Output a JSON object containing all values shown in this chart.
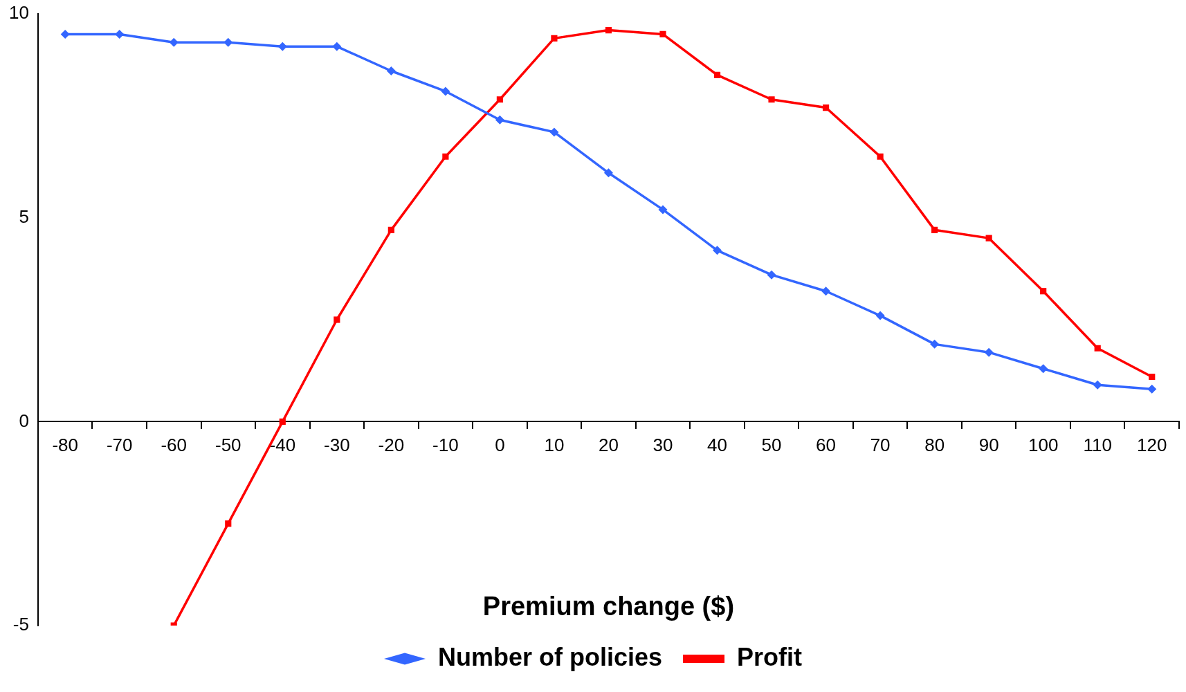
{
  "chart_data": {
    "type": "line",
    "xlabel": "Premium change ($)",
    "categories": [
      "-80",
      "-70",
      "-60",
      "-50",
      "-40",
      "-30",
      "-20",
      "-10",
      "0",
      "10",
      "20",
      "30",
      "40",
      "50",
      "60",
      "70",
      "80",
      "90",
      "100",
      "110",
      "120"
    ],
    "series": [
      {
        "name": "Number of policies",
        "color": "#3366ff",
        "marker": "diamond",
        "values": [
          9.5,
          9.5,
          9.3,
          9.3,
          9.2,
          9.2,
          8.6,
          8.1,
          7.4,
          7.1,
          6.1,
          5.2,
          4.2,
          3.6,
          3.2,
          2.6,
          1.9,
          1.7,
          1.3,
          0.9,
          0.8
        ]
      },
      {
        "name": "Profit",
        "color": "#ff0000",
        "marker": "square",
        "values": [
          null,
          null,
          -5.0,
          -2.5,
          0.0,
          2.5,
          4.7,
          6.5,
          7.9,
          9.4,
          9.6,
          9.5,
          8.5,
          7.9,
          7.7,
          6.5,
          4.7,
          4.5,
          3.2,
          1.8,
          1.1
        ]
      }
    ],
    "ylim": [
      -5,
      10
    ],
    "yticks": [
      -5,
      0,
      5,
      10
    ],
    "legend": "bottom",
    "line_style": "solid"
  }
}
